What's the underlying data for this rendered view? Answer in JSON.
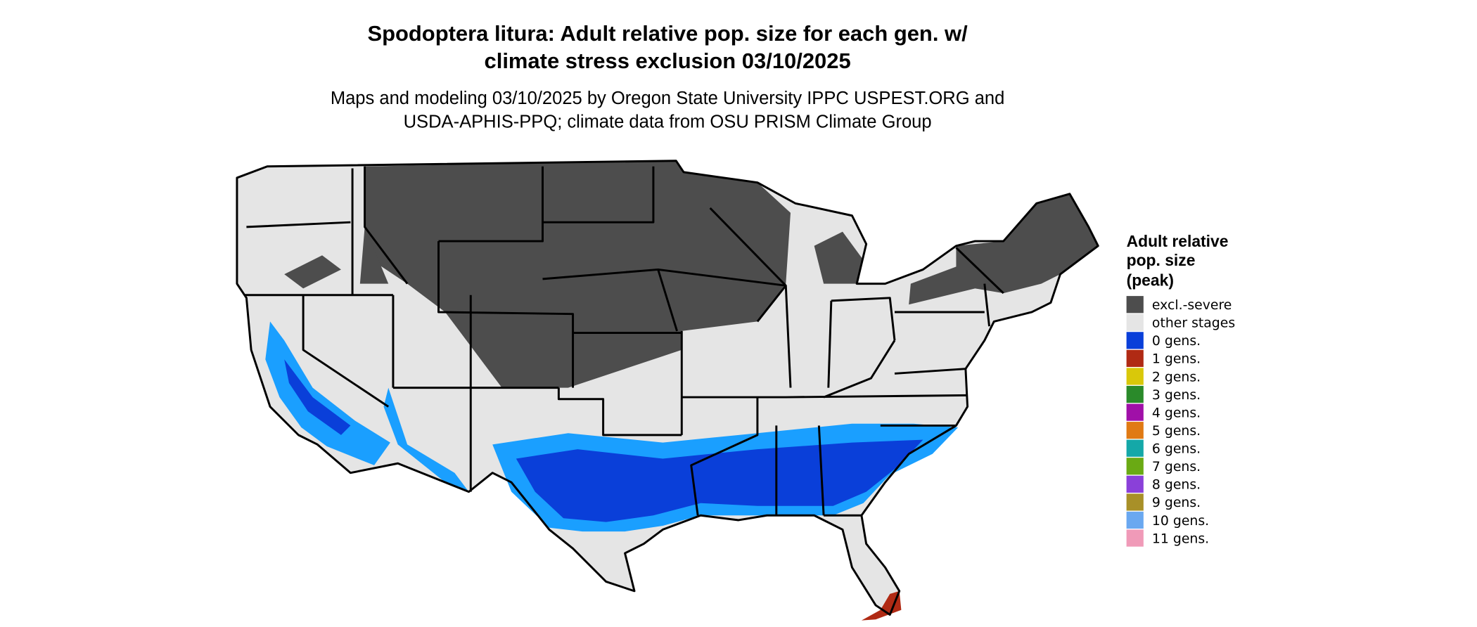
{
  "title": [
    "Spodoptera litura: Adult relative pop. size for each gen. w/",
    "climate stress exclusion 03/10/2025"
  ],
  "subtitle": [
    "Maps and modeling 03/10/2025 by Oregon State University IPPC USPEST.ORG and",
    "USDA-APHIS-PPQ; climate data from OSU PRISM Climate Group"
  ],
  "legend": {
    "title": [
      "Adult relative",
      "pop. size",
      "(peak)"
    ],
    "items": [
      {
        "label": "excl.-severe",
        "color": "#4d4d4d"
      },
      {
        "label": "other stages",
        "color": "#e5e5e5"
      },
      {
        "label": "0 gens.",
        "color": "#0a3fd9"
      },
      {
        "label": "1 gens.",
        "color": "#b02a14"
      },
      {
        "label": "2 gens.",
        "color": "#d9c80a"
      },
      {
        "label": "3 gens.",
        "color": "#2a8a2a"
      },
      {
        "label": "4 gens.",
        "color": "#a010a8"
      },
      {
        "label": "5 gens.",
        "color": "#e07a14"
      },
      {
        "label": "6 gens.",
        "color": "#14a8a8"
      },
      {
        "label": "7 gens.",
        "color": "#6aaa14"
      },
      {
        "label": "8 gens.",
        "color": "#8a40d9"
      },
      {
        "label": "9 gens.",
        "color": "#a89028"
      },
      {
        "label": "10 gens.",
        "color": "#6aa8f0"
      },
      {
        "label": "11 gens.",
        "color": "#f09ab8"
      }
    ]
  }
}
